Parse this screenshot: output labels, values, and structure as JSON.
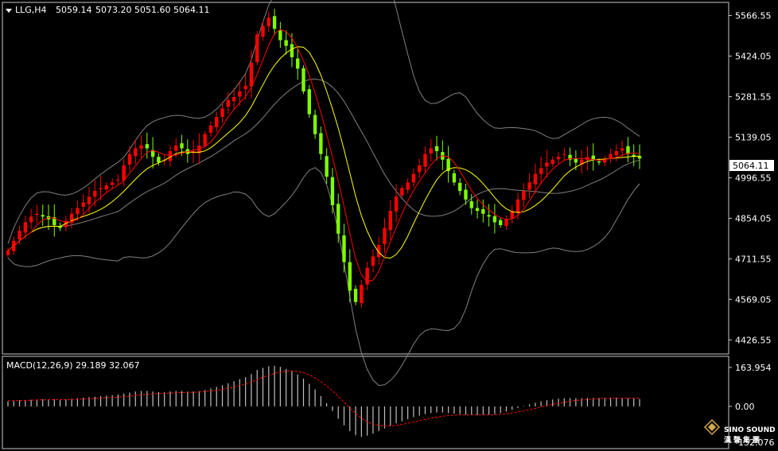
{
  "chart_data": [
    {
      "type": "candlestick",
      "title": "LLG,H4",
      "ohlc_readout": {
        "open": "5059.14",
        "high": "5073.20",
        "low": "5051.60",
        "close": "5064.11"
      },
      "last_price_label": "5064.11",
      "ylim": [
        4380,
        5610
      ],
      "y_ticks": [
        "5566.55",
        "5424.05",
        "5281.55",
        "5139.05",
        "4996.55",
        "4854.05",
        "4711.55",
        "4569.05",
        "4426.55"
      ],
      "y_tick_values": [
        5566.55,
        5424.05,
        5281.55,
        5139.05,
        4996.55,
        4854.05,
        4711.55,
        4569.05,
        4426.55
      ],
      "colors": {
        "bull": "#ff0000",
        "bear": "#7fff00",
        "ma_fast": "#ff0000",
        "ma_slow": "#ffff00",
        "bands": "#808080",
        "grid_border": "#c8c8c8"
      },
      "closes": [
        4740,
        4775,
        4810,
        4840,
        4860,
        4870,
        4860,
        4850,
        4830,
        4820,
        4845,
        4870,
        4890,
        4910,
        4930,
        4950,
        4960,
        4970,
        4980,
        4990,
        5040,
        5080,
        5100,
        5110,
        5100,
        5070,
        5050,
        5060,
        5090,
        5110,
        5100,
        5080,
        5090,
        5110,
        5150,
        5180,
        5210,
        5240,
        5270,
        5280,
        5300,
        5320,
        5400,
        5500,
        5530,
        5560,
        5520,
        5480,
        5460,
        5420,
        5380,
        5300,
        5220,
        5150,
        5080,
        5000,
        4900,
        4800,
        4700,
        4600,
        4560,
        4620,
        4680,
        4720,
        4760,
        4820,
        4880,
        4930,
        4960,
        4980,
        5010,
        5040,
        5080,
        5100,
        5090,
        5060,
        5020,
        4980,
        4950,
        4920,
        4890,
        4880,
        4870,
        4860,
        4840,
        4830,
        4850,
        4880,
        4920,
        4950,
        4980,
        5010,
        5030,
        5050,
        5060,
        5070,
        5080,
        5060,
        5050,
        5060,
        5070,
        5060,
        5050,
        5060,
        5080,
        5090,
        5100,
        5080,
        5070,
        5064
      ]
    },
    {
      "type": "histogram",
      "title": "MACD(12,26,9) 29.189 32.067",
      "ylim": [
        -152.076,
        163.954
      ],
      "y_ticks": [
        "163.954",
        "0.00",
        "-152.076"
      ],
      "y_tick_values": [
        163.954,
        0,
        -152.076
      ],
      "colors": {
        "histogram": "#c0c0c0",
        "signal": "#ff0000"
      },
      "macd": [
        20,
        22,
        24,
        25,
        26,
        27,
        28,
        28,
        28,
        27,
        28,
        30,
        32,
        34,
        36,
        38,
        40,
        42,
        44,
        46,
        50,
        54,
        58,
        60,
        60,
        58,
        56,
        56,
        58,
        60,
        60,
        58,
        58,
        60,
        64,
        70,
        76,
        82,
        90,
        98,
        106,
        114,
        126,
        142,
        150,
        156,
        158,
        154,
        146,
        136,
        124,
        108,
        88,
        66,
        40,
        12,
        -18,
        -48,
        -74,
        -96,
        -112,
        -118,
        -114,
        -106,
        -96,
        -86,
        -76,
        -66,
        -58,
        -50,
        -42,
        -36,
        -30,
        -26,
        -24,
        -24,
        -26,
        -28,
        -30,
        -32,
        -34,
        -34,
        -34,
        -32,
        -30,
        -26,
        -20,
        -14,
        -6,
        2,
        8,
        14,
        20,
        24,
        27,
        30,
        32,
        32,
        32,
        32,
        33,
        33,
        33,
        33,
        34,
        34,
        33,
        32,
        31,
        29
      ],
      "signal": [
        22,
        22,
        23,
        23,
        24,
        25,
        25,
        26,
        26,
        26,
        27,
        27,
        28,
        29,
        30,
        31,
        32,
        34,
        35,
        36,
        38,
        40,
        43,
        45,
        47,
        49,
        50,
        51,
        52,
        53,
        54,
        55,
        55,
        56,
        58,
        60,
        62,
        66,
        70,
        75,
        81,
        87,
        95,
        104,
        113,
        121,
        129,
        134,
        137,
        138,
        136,
        131,
        123,
        111,
        97,
        80,
        61,
        39,
        16,
        -7,
        -28,
        -46,
        -60,
        -69,
        -74,
        -76,
        -76,
        -74,
        -70,
        -66,
        -61,
        -56,
        -51,
        -46,
        -42,
        -38,
        -36,
        -34,
        -33,
        -33,
        -33,
        -33,
        -33,
        -33,
        -32,
        -31,
        -29,
        -26,
        -22,
        -18,
        -13,
        -8,
        -2,
        3,
        8,
        12,
        16,
        20,
        23,
        25,
        27,
        28,
        30,
        31,
        31,
        32,
        32,
        32,
        32,
        32
      ]
    }
  ],
  "watermark": {
    "brand": "SINO SOUND",
    "chinese": "漢聲集團"
  }
}
